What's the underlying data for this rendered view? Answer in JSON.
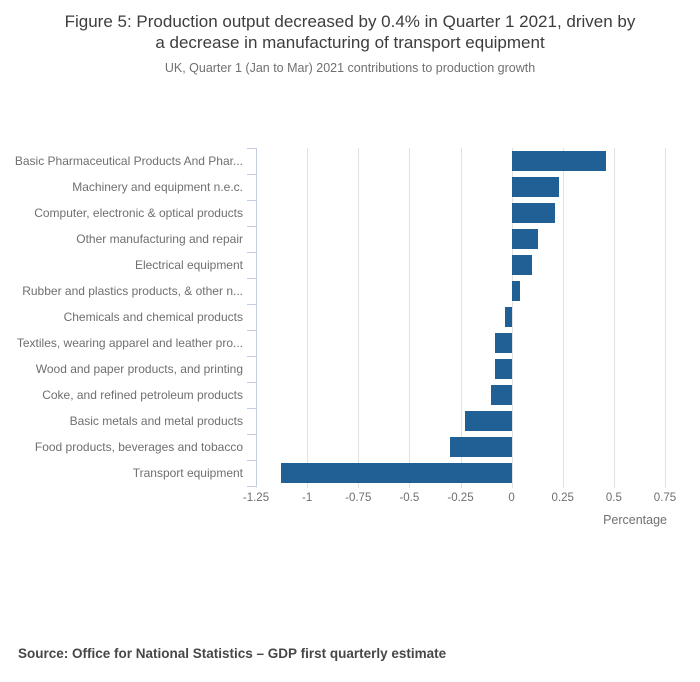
{
  "header": {
    "title_line1": "Figure 5: Production output decreased by 0.4% in Quarter 1 2021, driven by",
    "title_line2": "a decrease in manufacturing of transport equipment",
    "subtitle": "UK, Quarter 1 (Jan to Mar) 2021 contributions to production growth"
  },
  "footer": {
    "source": "Source: Office for National Statistics – GDP first quarterly estimate"
  },
  "chart_data": {
    "type": "bar",
    "orientation": "horizontal",
    "title": "Figure 5: Production output decreased by 0.4% in Quarter 1 2021, driven by a decrease in manufacturing of transport equipment",
    "subtitle": "UK, Quarter 1 (Jan to Mar) 2021 contributions to production growth",
    "categories": [
      "Basic Pharmaceutical Products And Phar...",
      "Machinery and equipment n.e.c.",
      "Computer, electronic & optical products",
      "Other manufacturing and repair",
      "Electrical equipment",
      "Rubber and plastics products, & other n...",
      "Chemicals and chemical products",
      "Textiles, wearing apparel and leather pro...",
      "Wood and paper products, and printing",
      "Coke, and refined petroleum products",
      "Basic metals and metal products",
      "Food products, beverages and tobacco",
      "Transport equipment"
    ],
    "values": [
      0.46,
      0.23,
      0.21,
      0.13,
      0.1,
      0.04,
      -0.03,
      -0.08,
      -0.08,
      -0.1,
      -0.23,
      -0.3,
      -1.13
    ],
    "xlabel": "Percentage",
    "ylabel": "",
    "xlim": [
      -1.25,
      0.75
    ],
    "xticks": [
      -1.25,
      -1,
      -0.75,
      -0.5,
      -0.25,
      0,
      0.25,
      0.5,
      0.75
    ],
    "xtick_labels": [
      "-1.25",
      "-1",
      "-0.75",
      "-0.5",
      "-0.25",
      "0",
      "0.25",
      "0.5",
      "0.75"
    ],
    "grid": true,
    "legend": "none"
  },
  "colors": {
    "bar": "#206095",
    "gridline": "#e2e2e2",
    "axis": "#c3cede",
    "title_text": "#3d3d3d",
    "muted_text": "#707070",
    "source_text": "#474747",
    "background": "#ffffff"
  }
}
